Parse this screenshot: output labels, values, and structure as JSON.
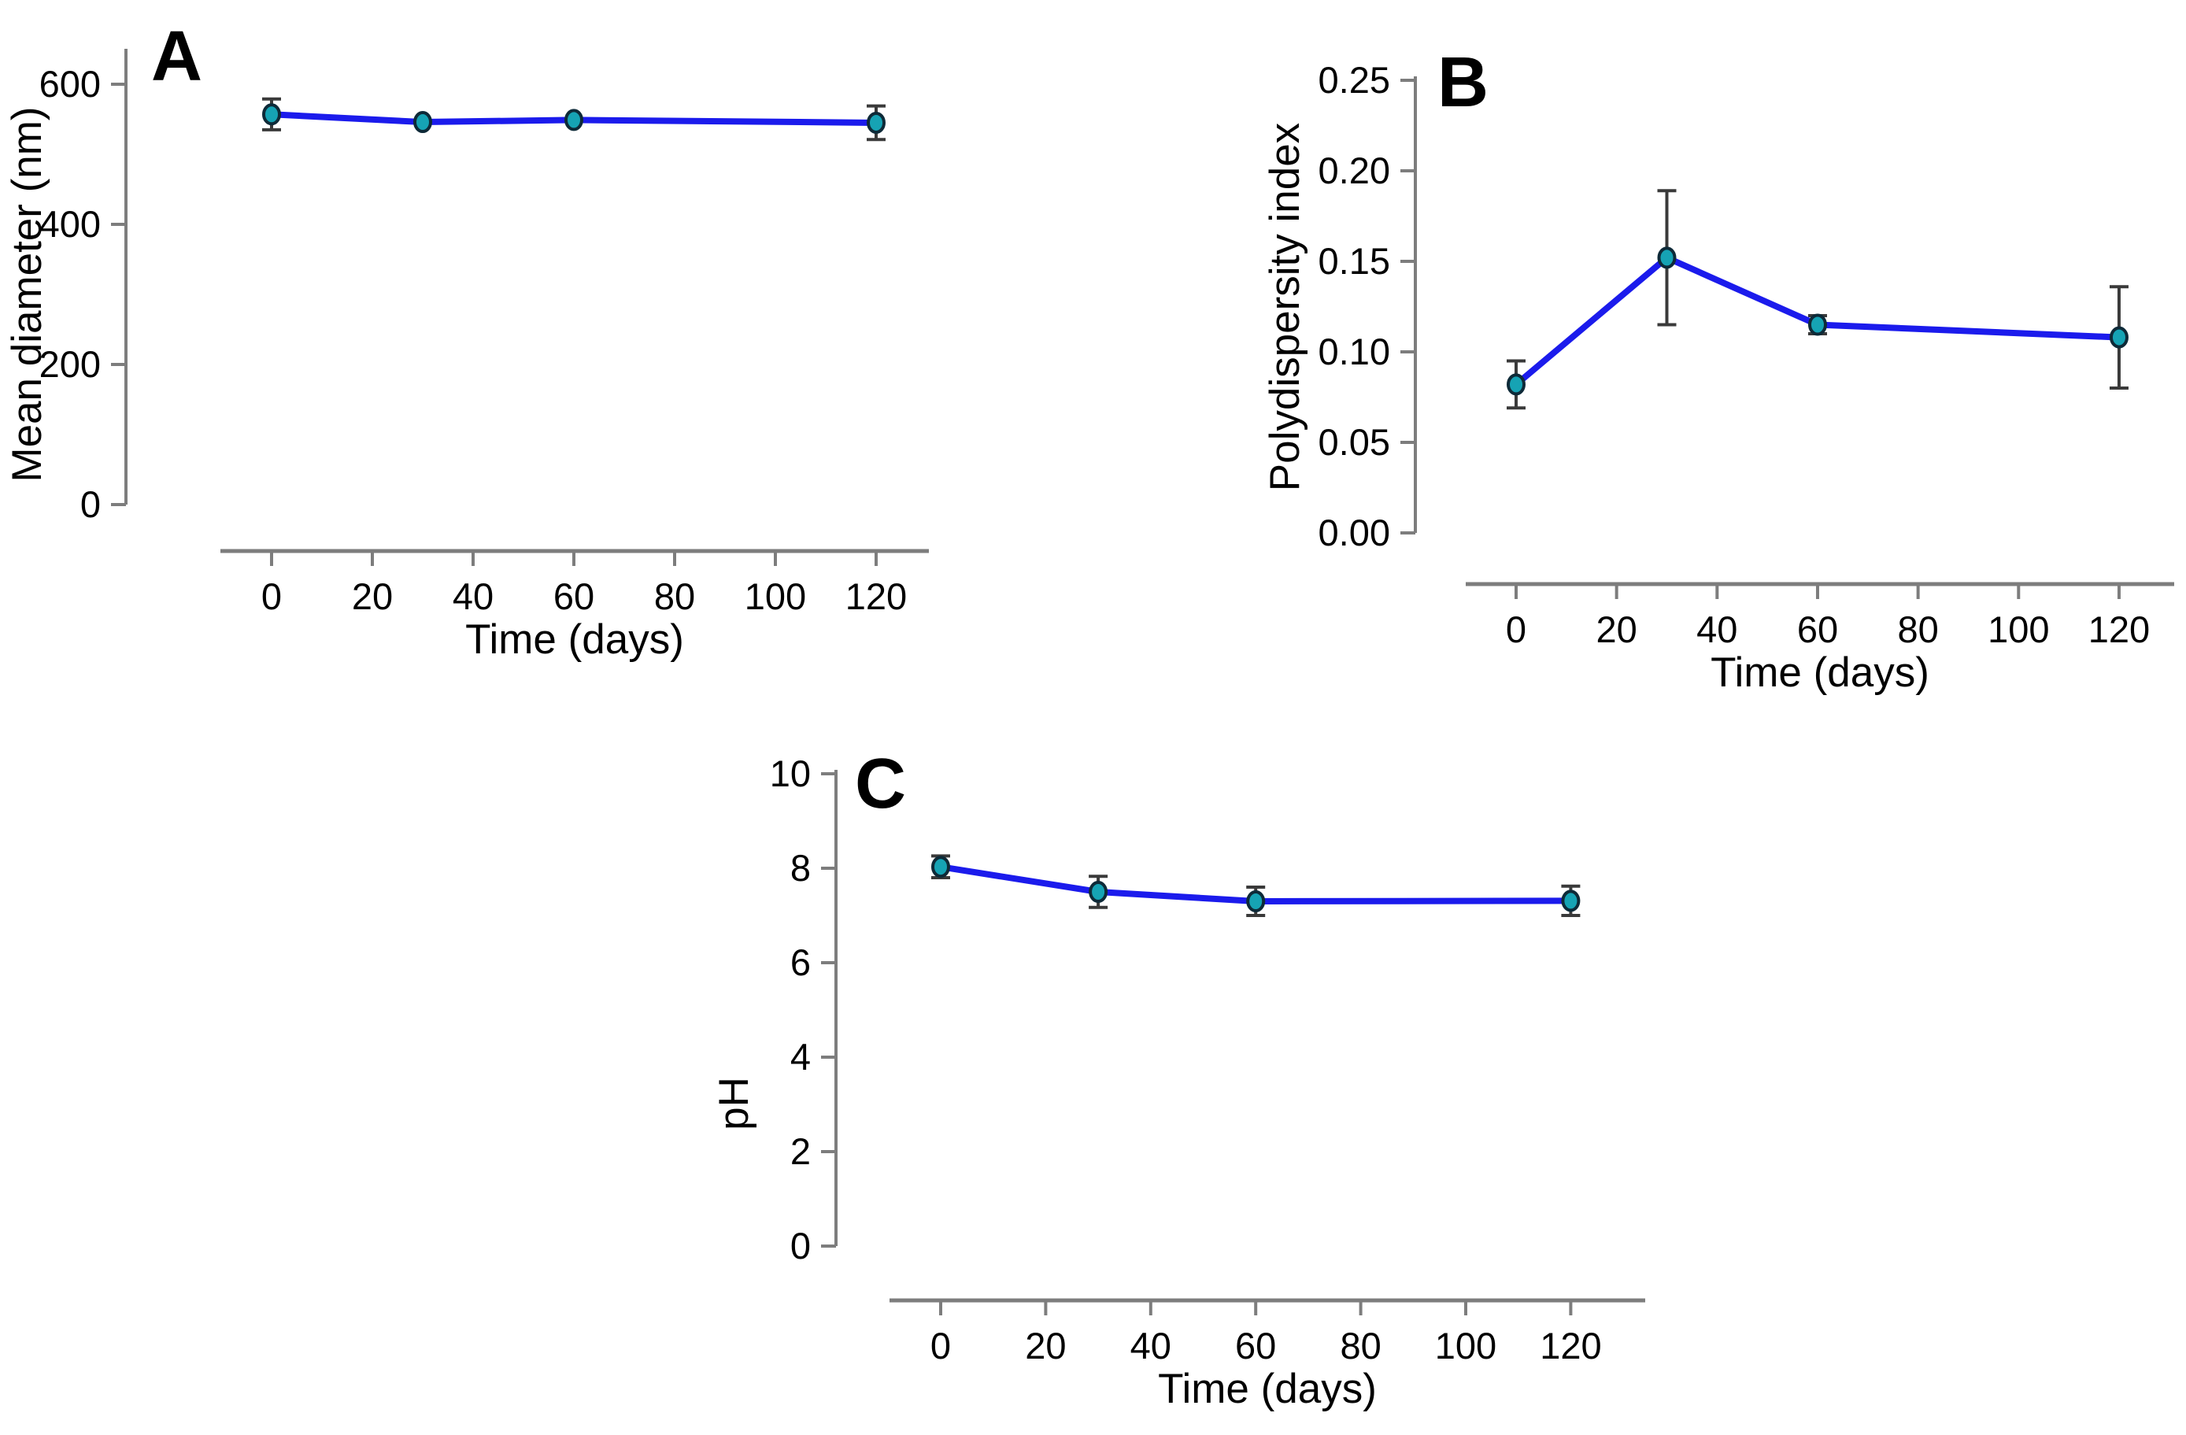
{
  "figure": {
    "background": "#ffffff",
    "style": {
      "line_color": "#1b1bec",
      "marker_fill": "#16a3b4",
      "marker_stroke": "#0e2a38",
      "error_bar_color": "#3a3a3a",
      "axis_color": "#7d7d7d",
      "text_color": "#000000"
    }
  },
  "chart_data": [
    {
      "type": "line",
      "panel_label": "A",
      "title": "",
      "xlabel": "Time (days)",
      "ylabel": "Mean diameter (nm)",
      "x": [
        0,
        30,
        60,
        120
      ],
      "values": [
        557,
        546,
        549,
        545
      ],
      "errors": [
        22,
        5,
        11,
        24
      ],
      "xticks": [
        0,
        20,
        40,
        60,
        80,
        100,
        120
      ],
      "xtick_labels": [
        "0",
        "20",
        "40",
        "60",
        "80",
        "100",
        "120"
      ],
      "yticks": [
        600,
        400,
        200,
        0
      ],
      "ytick_labels": [
        "600",
        "400",
        "200",
        "0"
      ],
      "xlim": [
        -10,
        130
      ],
      "ylim": [
        0,
        660
      ],
      "grid": false,
      "legend": null,
      "marker": "circle",
      "error_bars": true
    },
    {
      "type": "line",
      "panel_label": "B",
      "title": "",
      "xlabel": "Time (days)",
      "ylabel": "Polydispersity index",
      "x": [
        0,
        30,
        60,
        120
      ],
      "values": [
        0.082,
        0.152,
        0.115,
        0.108
      ],
      "errors": [
        0.013,
        0.037,
        0.005,
        0.028
      ],
      "xticks": [
        0,
        20,
        40,
        60,
        80,
        100,
        120
      ],
      "xtick_labels": [
        "0",
        "20",
        "40",
        "60",
        "80",
        "100",
        "120"
      ],
      "yticks": [
        0.25,
        0.2,
        0.15,
        0.1,
        0.05,
        0.0
      ],
      "ytick_labels": [
        "0.25",
        "0.20",
        "0.15",
        "0.10",
        "0.05",
        "0.00"
      ],
      "xlim": [
        -10,
        130
      ],
      "ylim": [
        0,
        0.25
      ],
      "grid": false,
      "legend": null,
      "marker": "circle",
      "error_bars": true
    },
    {
      "type": "line",
      "panel_label": "C",
      "title": "",
      "xlabel": "Time (days)",
      "ylabel": "pH",
      "x": [
        0,
        30,
        60,
        120
      ],
      "values": [
        8.03,
        7.5,
        7.3,
        7.31
      ],
      "errors": [
        0.23,
        0.33,
        0.3,
        0.31
      ],
      "xticks": [
        0,
        20,
        40,
        60,
        80,
        100,
        120
      ],
      "xtick_labels": [
        "0",
        "20",
        "40",
        "60",
        "80",
        "100",
        "120"
      ],
      "yticks": [
        10,
        8,
        6,
        4,
        2,
        0
      ],
      "ytick_labels": [
        "10",
        "8",
        "6",
        "4",
        "2",
        "0"
      ],
      "xlim": [
        -10,
        130
      ],
      "ylim": [
        0,
        10.5
      ],
      "grid": false,
      "legend": null,
      "marker": "circle",
      "error_bars": true
    }
  ]
}
